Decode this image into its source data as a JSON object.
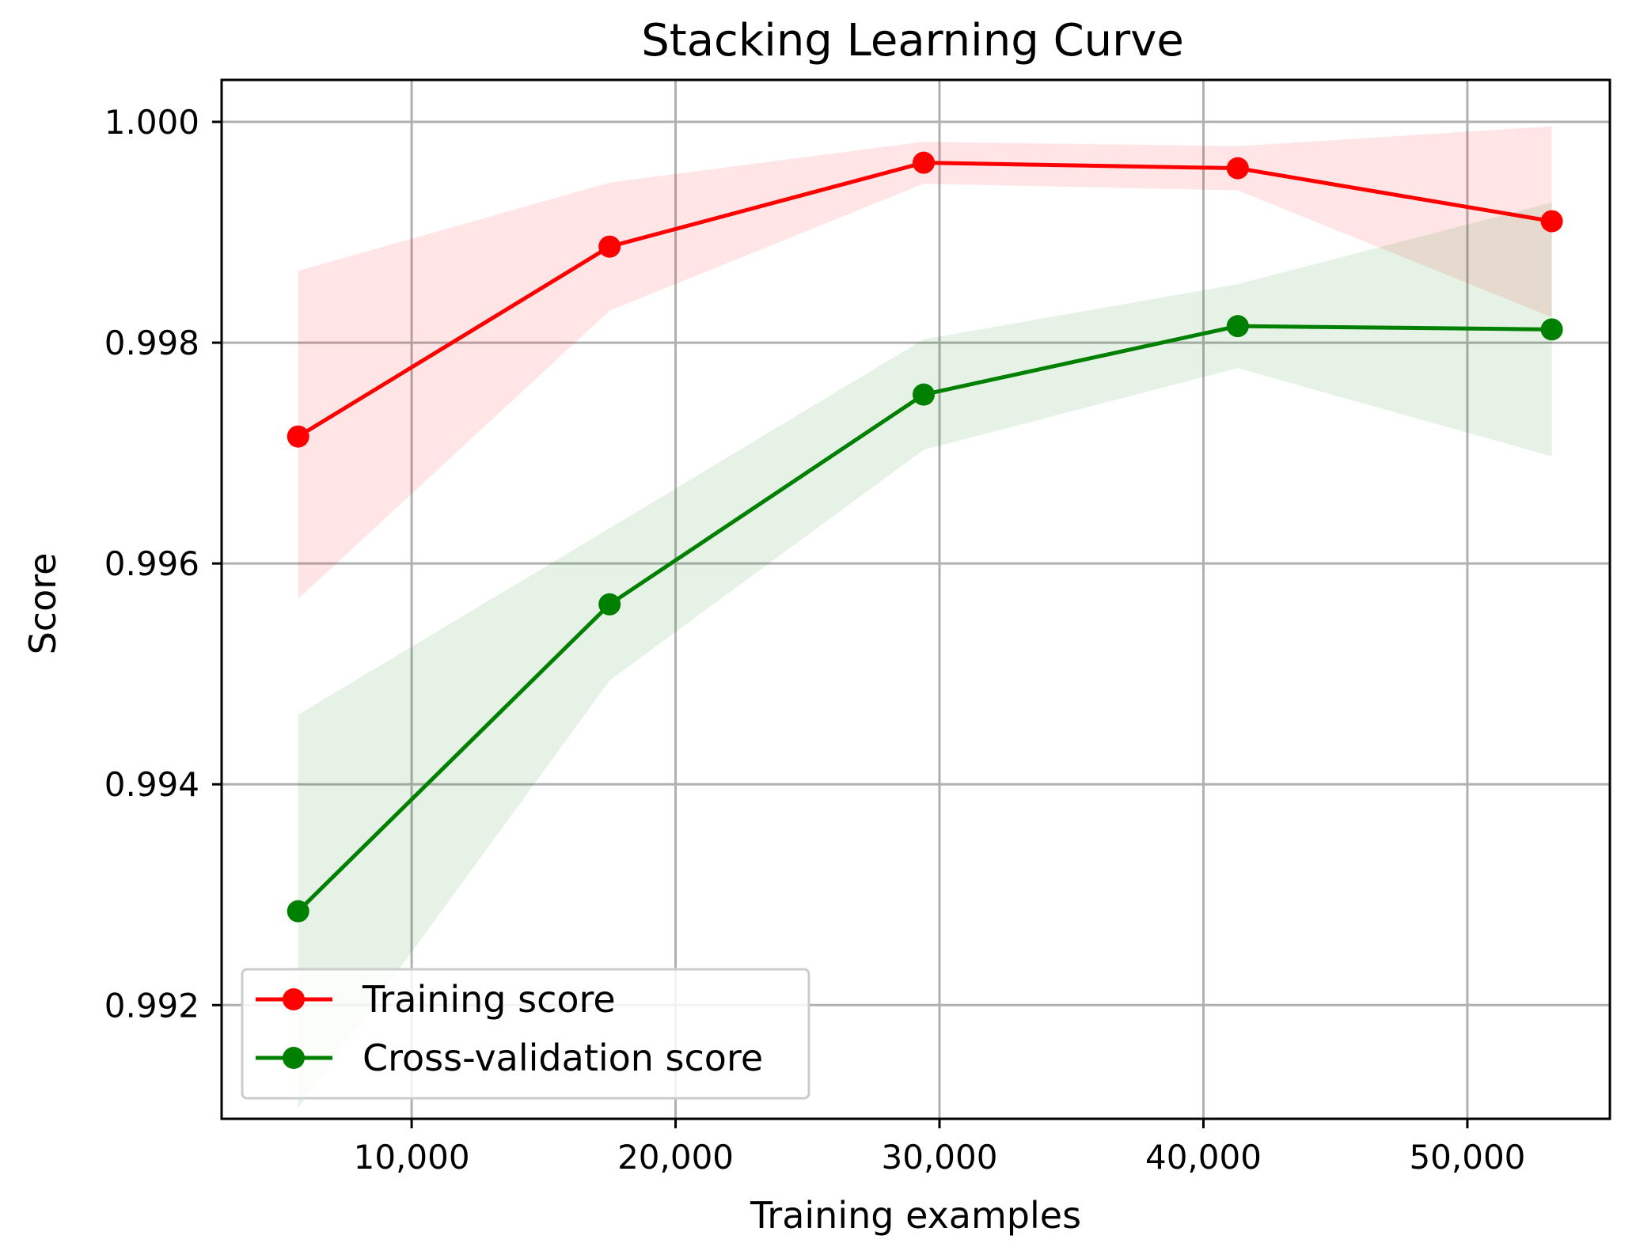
{
  "chart_data": {
    "type": "line",
    "title": "Stacking Learning Curve",
    "xlabel": "Training examples",
    "ylabel": "Score",
    "x": [
      5700,
      17500,
      29400,
      41300,
      53200
    ],
    "xlim": [
      2800,
      55400
    ],
    "ylim": [
      0.99097,
      1.00038
    ],
    "xticks": [
      10000,
      20000,
      30000,
      40000,
      50000
    ],
    "xtick_labels": [
      "10,000",
      "20,000",
      "30,000",
      "40,000",
      "50,000"
    ],
    "yticks": [
      0.992,
      0.994,
      0.996,
      0.998,
      1.0
    ],
    "ytick_labels": [
      "0.992",
      "0.994",
      "0.996",
      "0.998",
      "1.000"
    ],
    "grid": true,
    "legend_position": "lower-left",
    "series": [
      {
        "name": "Training score",
        "color": "#ff0000",
        "values": [
          0.99715,
          0.99887,
          0.99963,
          0.99958,
          0.9991
        ],
        "band_upper": [
          0.99865,
          0.99945,
          0.99982,
          0.99978,
          0.99996
        ],
        "band_lower": [
          0.99568,
          0.99829,
          0.99944,
          0.99938,
          0.99823
        ],
        "band_color": "#ff0000",
        "band_opacity": 0.1
      },
      {
        "name": "Cross-validation score",
        "color": "#008000",
        "values": [
          0.99285,
          0.99563,
          0.99753,
          0.99815,
          0.99812
        ],
        "band_upper": [
          0.99463,
          0.99632,
          0.99803,
          0.99853,
          0.99927
        ],
        "band_lower": [
          0.99107,
          0.99494,
          0.99703,
          0.99777,
          0.99697
        ],
        "band_color": "#008000",
        "band_opacity": 0.1
      }
    ]
  }
}
